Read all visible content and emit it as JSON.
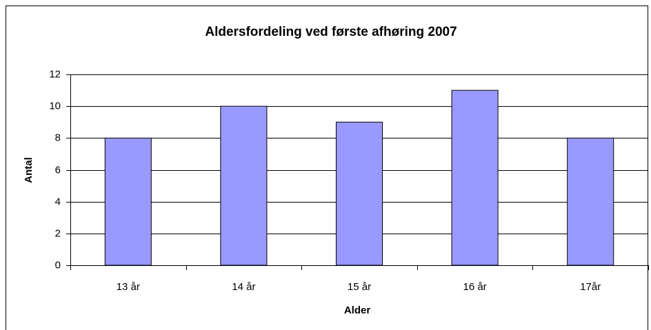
{
  "chart_data": {
    "type": "bar",
    "title": "Aldersfordeling ved første afhøring 2007",
    "x_label": "Alder",
    "y_label": "Antal",
    "categories": [
      "13 år",
      "14 år",
      "15 år",
      "16 år",
      "17år"
    ],
    "values": [
      8,
      10,
      9,
      11,
      8
    ],
    "color": "#9999ff",
    "ylim": [
      0,
      12
    ],
    "yticks": [
      0,
      2,
      4,
      6,
      8,
      10,
      12
    ],
    "grid": true
  }
}
